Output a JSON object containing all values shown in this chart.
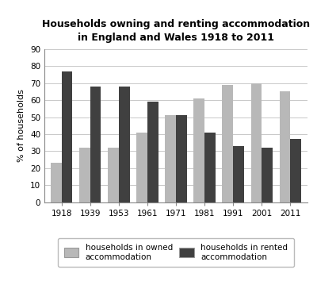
{
  "title_line1": "Households owning and renting accommodation",
  "title_line2": "in England and Wales 1918 to 2011",
  "years": [
    "1918",
    "1939",
    "1953",
    "1961",
    "1971",
    "1981",
    "1991",
    "2001",
    "2011"
  ],
  "owned": [
    23,
    32,
    32,
    41,
    51,
    61,
    69,
    70,
    65
  ],
  "rented": [
    77,
    68,
    68,
    59,
    51,
    41,
    33,
    32,
    37
  ],
  "owned_color": "#b8b8b8",
  "rented_color": "#404040",
  "ylabel": "% of households",
  "ylim": [
    0,
    90
  ],
  "yticks": [
    0,
    10,
    20,
    30,
    40,
    50,
    60,
    70,
    80,
    90
  ],
  "legend_owned": "households in owned\naccommodation",
  "legend_rented": "households in rented\naccommodation",
  "bar_width": 0.38,
  "grid_color": "#c8c8c8",
  "background_color": "#ffffff"
}
